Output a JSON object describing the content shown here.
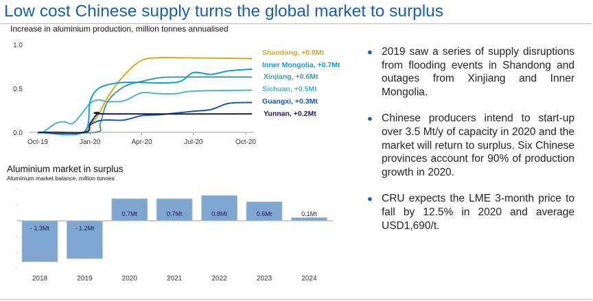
{
  "header": {
    "title": "Low cost Chinese supply turns the global market to surplus"
  },
  "chart_data": [
    {
      "type": "line",
      "title": "Increase in aluminium production, million tonnes annualised",
      "ylim": [
        0,
        1.0
      ],
      "yticks": [
        "0.0",
        "0.5",
        "1.0"
      ],
      "xticks": [
        {
          "label": "Oct-19",
          "date": "2019-10-01"
        },
        {
          "label": "Jan-20",
          "date": "2020-01-01"
        },
        {
          "label": "Apr-20",
          "date": "2020-04-01"
        },
        {
          "label": "Jul-20",
          "date": "2020-07-01"
        },
        {
          "label": "Oct-20",
          "date": "2020-10-01"
        }
      ],
      "grid": false,
      "legend": "right",
      "series": [
        {
          "name": "Shandong, +0.8Mt",
          "color": "#d8a81c",
          "points": [
            [
              "2019-10-01",
              0
            ],
            [
              "2019-11-01",
              0.005
            ],
            [
              "2019-12-01",
              0
            ],
            [
              "2019-12-22",
              0
            ],
            [
              "2020-01-01",
              0.08
            ],
            [
              "2020-01-16",
              0.2
            ],
            [
              "2020-02-01",
              0.4
            ],
            [
              "2020-03-01",
              0.65
            ],
            [
              "2020-04-01",
              0.82
            ],
            [
              "2020-05-01",
              0.85
            ],
            [
              "2020-06-01",
              0.85
            ],
            [
              "2020-10-12",
              0.84
            ]
          ]
        },
        {
          "name": "Inner Mongolia, +0.7Mt",
          "color": "#0a9ee0",
          "points": [
            [
              "2019-12-20",
              0
            ],
            [
              "2020-01-01",
              0.35
            ],
            [
              "2020-01-16",
              0.5
            ],
            [
              "2020-02-15",
              0.56
            ],
            [
              "2020-03-15",
              0.57
            ],
            [
              "2020-06-01",
              0.57
            ],
            [
              "2020-07-01",
              0.68
            ],
            [
              "2020-08-01",
              0.66
            ],
            [
              "2020-09-01",
              0.7
            ],
            [
              "2020-10-12",
              0.72
            ]
          ]
        },
        {
          "name": "Xinjiang, +0.6Mt",
          "color": "#4a9797",
          "points": [
            [
              "2020-01-10",
              0
            ],
            [
              "2020-01-19",
              0.1
            ],
            [
              "2020-02-01",
              0.35
            ],
            [
              "2020-03-01",
              0.52
            ],
            [
              "2020-04-01",
              0.58
            ],
            [
              "2020-05-01",
              0.62
            ],
            [
              "2020-06-01",
              0.63
            ],
            [
              "2020-10-12",
              0.63
            ]
          ]
        },
        {
          "name": "Sichuan, +0.5Mt",
          "color": "#4cb2cf",
          "points": [
            [
              "2019-10-10",
              0
            ],
            [
              "2019-11-01",
              0.1
            ],
            [
              "2019-11-16",
              0.12
            ],
            [
              "2019-12-01",
              0.1
            ],
            [
              "2019-12-16",
              0.2
            ],
            [
              "2020-01-01",
              0.33
            ],
            [
              "2020-01-16",
              0.37
            ],
            [
              "2020-02-01",
              0.35
            ],
            [
              "2020-03-01",
              0.36
            ],
            [
              "2020-04-01",
              0.45
            ],
            [
              "2020-05-01",
              0.44
            ],
            [
              "2020-06-01",
              0.44
            ],
            [
              "2020-07-01",
              0.47
            ],
            [
              "2020-10-12",
              0.48
            ]
          ]
        },
        {
          "name": "Guangxi, +0.3Mt",
          "color": "#1458a8",
          "points": [
            [
              "2019-12-22",
              0
            ],
            [
              "2020-01-01",
              0.08
            ],
            [
              "2020-01-16",
              0.13
            ],
            [
              "2020-02-01",
              0.14
            ],
            [
              "2020-03-01",
              0.14
            ],
            [
              "2020-04-01",
              0.19
            ],
            [
              "2020-05-01",
              0.2
            ],
            [
              "2020-06-01",
              0.22
            ],
            [
              "2020-07-01",
              0.24
            ],
            [
              "2020-08-01",
              0.26
            ],
            [
              "2020-09-01",
              0.33
            ],
            [
              "2020-10-12",
              0.34
            ]
          ]
        },
        {
          "name": "Yunnan, +0.2Mt",
          "color": "#1e1c52",
          "points": [
            [
              "2019-12-22",
              0
            ],
            [
              "2020-01-01",
              0.1
            ],
            [
              "2020-01-16",
              0.22
            ],
            [
              "2020-02-01",
              0.21
            ],
            [
              "2020-10-12",
              0.21
            ]
          ]
        }
      ]
    },
    {
      "type": "bar",
      "title": "Aluminium market in surplus",
      "subtitle": "Aluminium market balance, million tonnes",
      "categories": [
        "2018",
        "2019",
        "2020",
        "2021",
        "2022",
        "2023",
        "2024"
      ],
      "values": [
        -1.3,
        -1.2,
        0.7,
        0.7,
        0.8,
        0.6,
        0.1
      ],
      "labels": [
        "- 1.3Mt",
        "- 1.2Mt",
        "0.7Mt",
        "0.7Mt",
        "0.8Mt",
        "0.6Mt",
        "0.1Mt"
      ],
      "color": "#7ea6cf",
      "ylim": [
        -1.5,
        1.0
      ]
    }
  ],
  "bullets": [
    "2019 saw a series of supply disruptions from flooding events in Shandong and outages from Xinjiang and Inner Mongolia.",
    "Chinese producers intend to start-up over 3.5 Mt/y of capacity in 2020 and the market will return to surplus. Six Chinese provinces account for 90% of production growth in 2020.",
    "CRU expects the LME 3-month price to fall by 12.5% in 2020 and average USD1,690/t."
  ],
  "colors": {
    "accent": "#1560b0"
  }
}
